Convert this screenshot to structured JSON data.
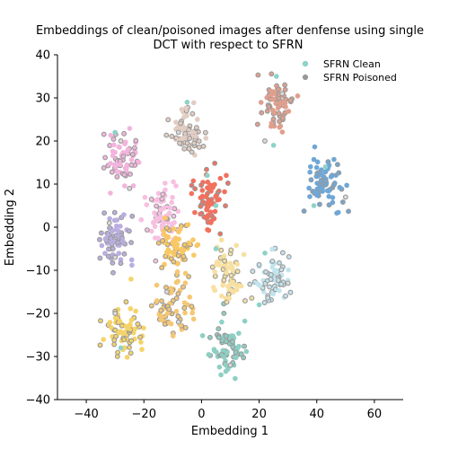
{
  "chart_data": {
    "type": "scatter",
    "title": [
      "Embeddings of clean/poisoned images after denfense using single",
      "DCT with respect to SFRN"
    ],
    "xlabel": "Embedding 1",
    "ylabel": "Embedding 2",
    "xlim": [
      -50,
      70
    ],
    "ylim": [
      -40,
      40
    ],
    "xticks": [
      -40,
      -20,
      0,
      20,
      40,
      60
    ],
    "yticks": [
      -40,
      -30,
      -20,
      -10,
      0,
      10,
      20,
      30,
      40
    ],
    "grid": false,
    "legend": {
      "placement": "top-right",
      "entries": [
        {
          "label": "SFRN Clean",
          "color": "#8dd3c7",
          "marker": "filled-circle"
        },
        {
          "label": "SFRN Poisoned",
          "color": "#999999",
          "marker": "hollow-circle"
        }
      ]
    },
    "poisoned_marker_color": "#999999",
    "clusters": [
      {
        "center": [
          26,
          28
        ],
        "color": "#e09f8e",
        "poisoned_share": 0.5
      },
      {
        "center": [
          43,
          10
        ],
        "color": "#6fa7d6",
        "poisoned_share": 0.4
      },
      {
        "center": [
          -28,
          16
        ],
        "color": "#f2b4dc",
        "poisoned_share": 0.45
      },
      {
        "center": [
          -5,
          22
        ],
        "color": "#e2cdc2",
        "poisoned_share": 0.5
      },
      {
        "center": [
          3,
          6
        ],
        "color": "#f2705e",
        "poisoned_share": 0.35
      },
      {
        "center": [
          -30,
          -3
        ],
        "color": "#b9aede",
        "poisoned_share": 0.5
      },
      {
        "center": [
          -13,
          3
        ],
        "color": "#f7bfe0",
        "poisoned_share": 0.3
      },
      {
        "center": [
          -8,
          -5
        ],
        "color": "#f9c865",
        "poisoned_share": 0.4
      },
      {
        "center": [
          25,
          -12
        ],
        "color": "#c3e4ee",
        "poisoned_share": 0.4
      },
      {
        "center": [
          -27,
          -24
        ],
        "color": "#f4d36a",
        "poisoned_share": 0.35
      },
      {
        "center": [
          -10,
          -19
        ],
        "color": "#f5c773",
        "poisoned_share": 0.45
      },
      {
        "center": [
          9,
          -28
        ],
        "color": "#8ecfc4",
        "poisoned_share": 0.5
      },
      {
        "center": [
          9,
          -10
        ],
        "color": "#f7e0a0",
        "poisoned_share": 0.3
      }
    ],
    "points": [
      {
        "x": 26,
        "y": 35,
        "series": "clean"
      },
      {
        "x": 28,
        "y": 31,
        "series": "poisoned"
      },
      {
        "x": 22,
        "y": 20,
        "series": "poisoned"
      },
      {
        "x": 25,
        "y": 19,
        "series": "clean"
      },
      {
        "x": 43,
        "y": 14,
        "series": "clean"
      },
      {
        "x": 50,
        "y": 7,
        "series": "poisoned"
      },
      {
        "x": 39,
        "y": 5,
        "series": "clean"
      },
      {
        "x": -30,
        "y": 22,
        "series": "clean"
      },
      {
        "x": -28,
        "y": 20,
        "series": "poisoned"
      },
      {
        "x": -25,
        "y": 9,
        "series": "poisoned"
      },
      {
        "x": -5,
        "y": 29,
        "series": "clean"
      },
      {
        "x": -8,
        "y": 22,
        "series": "poisoned"
      },
      {
        "x": 2,
        "y": 12,
        "series": "clean"
      },
      {
        "x": 5,
        "y": 5,
        "series": "clean"
      },
      {
        "x": -32,
        "y": 1,
        "series": "poisoned"
      },
      {
        "x": -30,
        "y": -7,
        "series": "poisoned"
      },
      {
        "x": 22,
        "y": -6,
        "series": "clean"
      },
      {
        "x": 30,
        "y": -13,
        "series": "poisoned"
      },
      {
        "x": 20,
        "y": -18,
        "series": "clean"
      },
      {
        "x": -30,
        "y": -20,
        "series": "poisoned"
      },
      {
        "x": -28,
        "y": -28,
        "series": "clean"
      },
      {
        "x": -12,
        "y": -15,
        "series": "poisoned"
      },
      {
        "x": -8,
        "y": -22,
        "series": "poisoned"
      },
      {
        "x": 7,
        "y": -22,
        "series": "clean"
      },
      {
        "x": 10,
        "y": -32,
        "series": "poisoned"
      },
      {
        "x": 5,
        "y": -5,
        "series": "clean"
      }
    ]
  }
}
